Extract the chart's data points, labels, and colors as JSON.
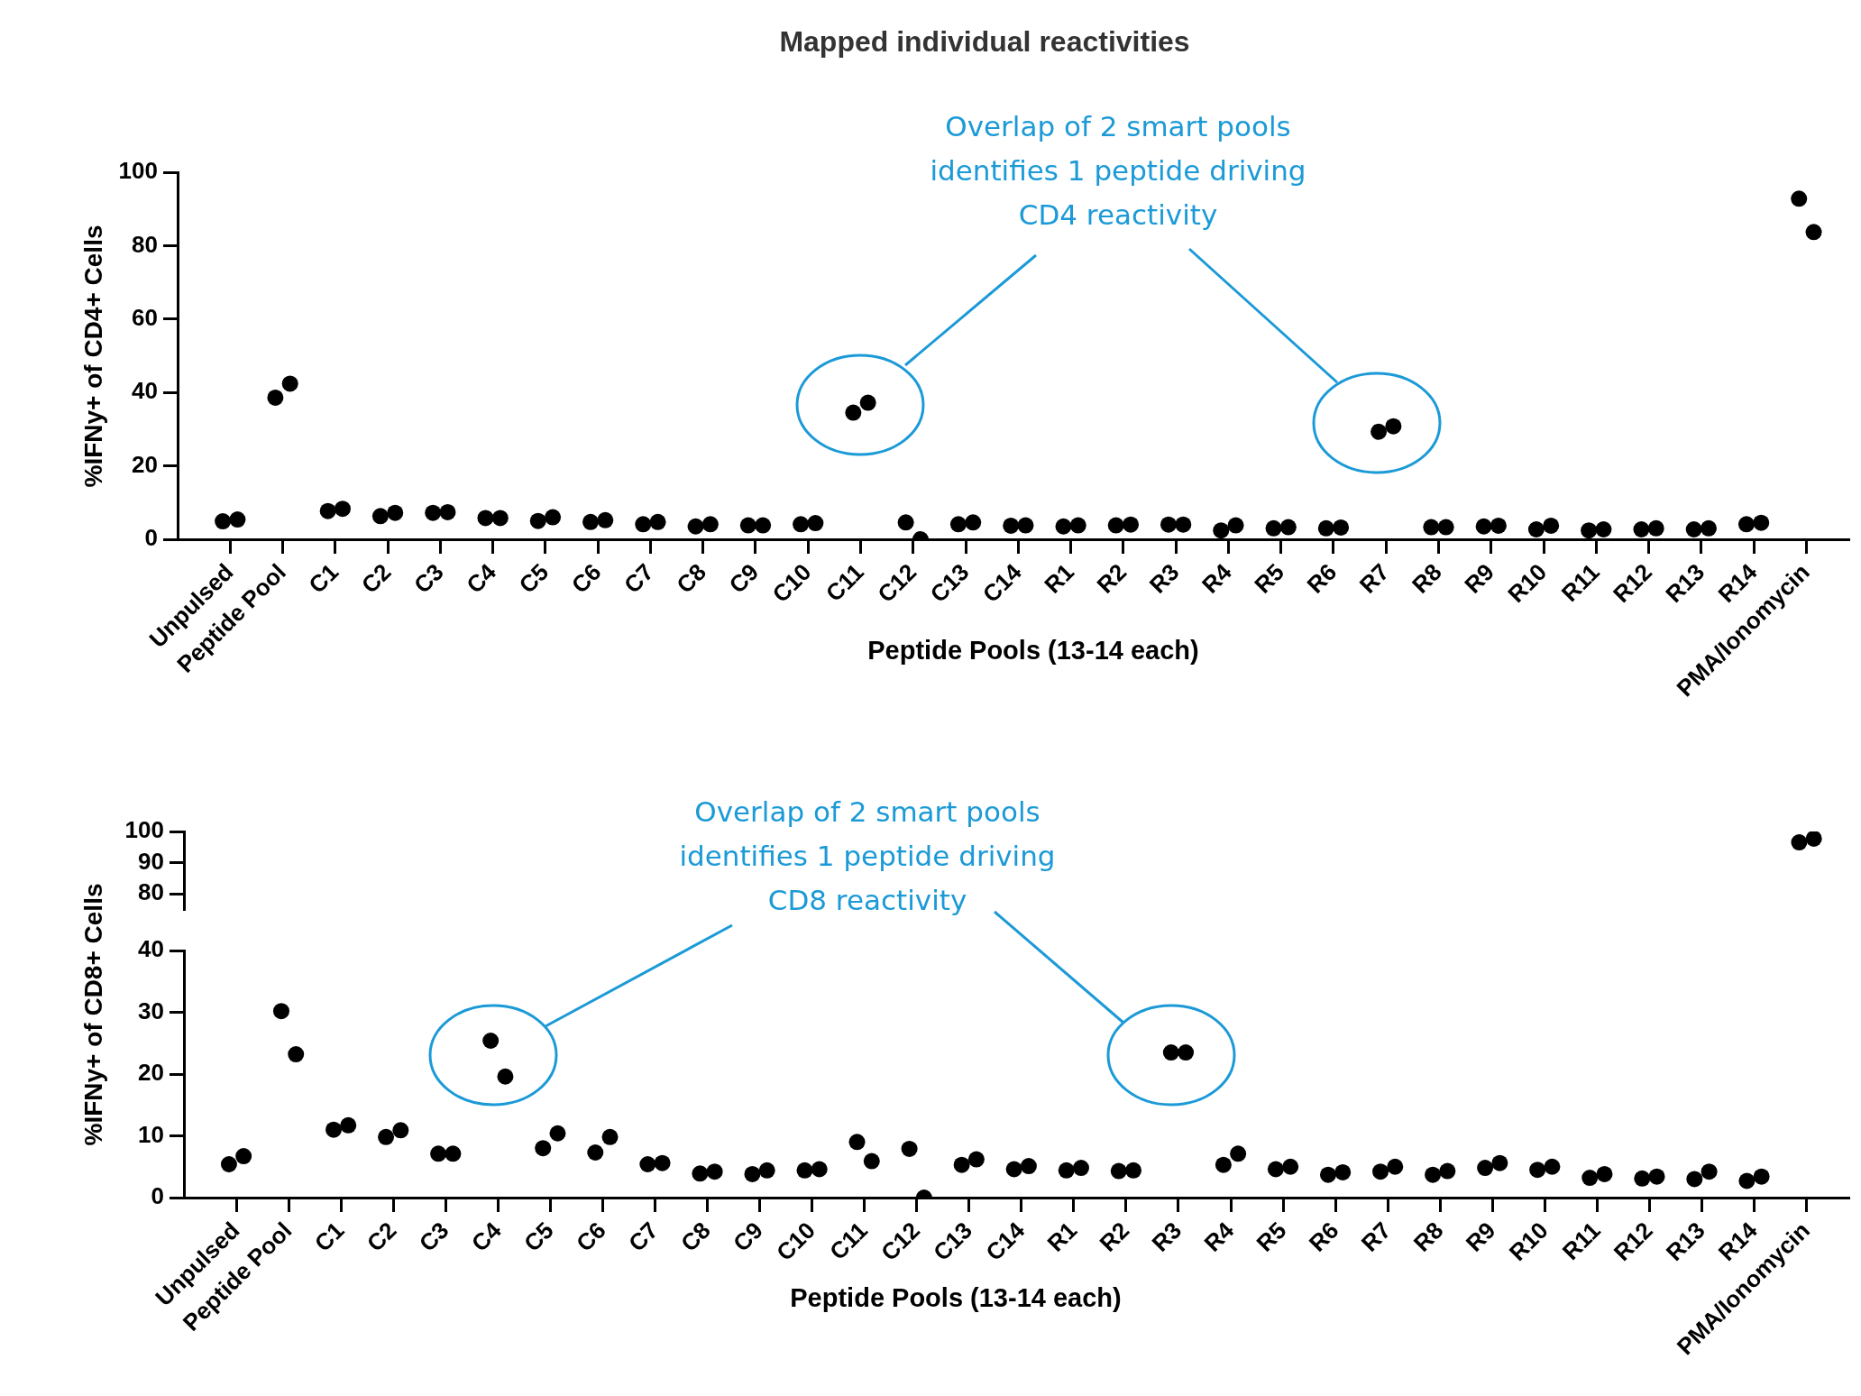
{
  "chart_data": [
    {
      "type": "scatter",
      "title": "Mapped individual reactivities",
      "xlabel": "Peptide Pools (13-14 each)",
      "ylabel": "%IFNy+ of CD4+ Cells",
      "categories": [
        "Unpulsed",
        "Peptide Pool",
        "C1",
        "C2",
        "C3",
        "C4",
        "C5",
        "C6",
        "C7",
        "C8",
        "C9",
        "C10",
        "C11",
        "C12",
        "C13",
        "C14",
        "R1",
        "R2",
        "R3",
        "R4",
        "R5",
        "R6",
        "R7",
        "R8",
        "R9",
        "R10",
        "R11",
        "R12",
        "R13",
        "R14",
        "PMA/Ionomycin"
      ],
      "series": [
        {
          "color": "#000000",
          "values": [
            4.9,
            38.6,
            7.7,
            6.3,
            7.2,
            5.8,
            5.0,
            4.7,
            4.1,
            3.5,
            3.8,
            4.1,
            34.5,
            4.6,
            4.1,
            3.7,
            3.5,
            3.8,
            4.0,
            2.4,
            3.0,
            3.0,
            29.3,
            3.3,
            3.5,
            2.7,
            2.4,
            2.7,
            2.7,
            4.1,
            92.8
          ]
        },
        {
          "color": "#000000",
          "values": [
            5.4,
            42.4,
            8.3,
            7.2,
            7.4,
            5.8,
            6.0,
            5.2,
            4.7,
            4.1,
            3.8,
            4.4,
            37.2,
            0,
            4.6,
            3.8,
            3.8,
            4.0,
            4.0,
            3.8,
            3.3,
            3.2,
            30.8,
            3.3,
            3.7,
            3.7,
            2.7,
            3.0,
            3.0,
            4.5,
            83.7
          ]
        }
      ],
      "ylim": [
        0,
        100
      ],
      "yticks": [
        0,
        20,
        40,
        60,
        80,
        100
      ],
      "marker": "circle",
      "annotations": [
        "Overlap of 2 smart pools identifies 1 peptide driving CD4 reactivity"
      ]
    },
    {
      "type": "scatter",
      "tick_labels": "y",
      "categories": [
        null,
        null,
        null,
        null,
        null,
        null,
        null,
        null,
        null,
        null,
        null,
        null,
        null,
        null,
        null,
        null,
        null,
        null,
        null,
        null,
        null,
        null,
        null,
        null,
        null,
        null,
        null,
        null,
        null,
        null,
        null
      ],
      "series": [
        {
          "color": "#000000",
          "values": [
            null,
            null,
            null,
            null,
            null,
            null,
            null,
            null,
            null,
            null,
            null,
            null,
            null,
            null,
            null,
            null,
            null,
            null,
            null,
            null,
            null,
            null,
            null,
            null,
            null,
            null,
            null,
            null,
            null,
            null,
            96.5
          ]
        },
        {
          "color": "#000000",
          "values": [
            null,
            null,
            null,
            null,
            null,
            null,
            null,
            null,
            null,
            null,
            null,
            null,
            null,
            null,
            null,
            null,
            null,
            null,
            null,
            null,
            null,
            null,
            null,
            null,
            null,
            null,
            null,
            null,
            null,
            null,
            97.7
          ]
        }
      ],
      "ylim": [
        75,
        100
      ],
      "yticks": [
        80,
        90,
        100
      ],
      "marker": "circle"
    },
    {
      "type": "scatter",
      "xlabel": "Peptide Pools (13-14 each)",
      "ylabel": "%IFNy+ of CD8+ Cells",
      "categories": [
        "Unpulsed",
        "Peptide Pool",
        "C1",
        "C2",
        "C3",
        "C4",
        "C5",
        "C6",
        "C7",
        "C8",
        "C9",
        "C10",
        "C11",
        "C12",
        "C13",
        "C14",
        "R1",
        "R2",
        "R3",
        "R4",
        "R5",
        "R6",
        "R7",
        "R8",
        "R9",
        "R10",
        "R11",
        "R12",
        "R13",
        "R14",
        "PMA/Ionomycin"
      ],
      "series": [
        {
          "color": "#000000",
          "values": [
            5.4,
            30.2,
            11.0,
            9.8,
            7.1,
            25.4,
            8.0,
            7.3,
            5.4,
            3.9,
            3.8,
            4.4,
            9.0,
            7.9,
            5.3,
            4.6,
            4.4,
            4.3,
            23.5,
            5.3,
            4.6,
            3.7,
            4.2,
            3.7,
            4.8,
            4.5,
            3.2,
            3.1,
            3.0,
            2.7,
            null
          ]
        },
        {
          "color": "#000000",
          "values": [
            6.7,
            23.2,
            11.7,
            10.9,
            7.1,
            19.6,
            10.4,
            9.8,
            5.6,
            4.2,
            4.4,
            4.6,
            5.9,
            0,
            6.2,
            5.1,
            4.8,
            4.4,
            23.5,
            7.1,
            5.0,
            4.1,
            5.0,
            4.3,
            5.6,
            5.0,
            3.8,
            3.4,
            4.2,
            3.4,
            null
          ]
        }
      ],
      "ylim": [
        0,
        40
      ],
      "yticks": [
        0,
        10,
        20,
        30,
        40
      ],
      "marker": "circle",
      "annotations": [
        "Overlap of 2 smart pools identifies 1 peptide driving CD8 reactivity"
      ]
    }
  ]
}
